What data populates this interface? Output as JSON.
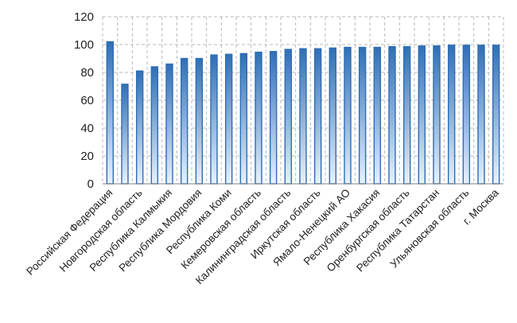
{
  "chart_data": {
    "type": "bar",
    "title": "",
    "xlabel": "",
    "ylabel": "",
    "ylim": [
      0,
      120
    ],
    "yticks": [
      0,
      20,
      40,
      60,
      80,
      100,
      120
    ],
    "grid": true,
    "legend": "none",
    "colors": {
      "bar_top": "#2f6fb6",
      "bar_bottom": "#e8f2fc",
      "bar_edge": "#2e6db4",
      "grid": "#b9b9b9"
    },
    "categories": [
      "Российская  Федерация",
      "",
      "Новгородская область",
      "",
      "Республика Калмыкия",
      "",
      "Республика Мордовия",
      "",
      "Республика Коми",
      "",
      "Кемеровская область",
      "",
      "Калининградская область",
      "",
      "Иркутская область",
      "",
      "Ямало-Ненецкий АО",
      "",
      "Республика Хакасия",
      "",
      "Оренбургская область",
      "",
      "Республика Татарстан",
      "",
      "Ульяновская область",
      "",
      "г. Москва"
    ],
    "values": [
      102,
      71.5,
      81,
      84,
      86,
      90,
      90,
      92.5,
      93,
      93.5,
      94.5,
      95,
      96.5,
      97,
      97,
      97.5,
      98,
      98,
      98,
      98.5,
      98.5,
      99,
      99,
      99.5,
      99.5,
      99.5,
      99.5
    ]
  }
}
